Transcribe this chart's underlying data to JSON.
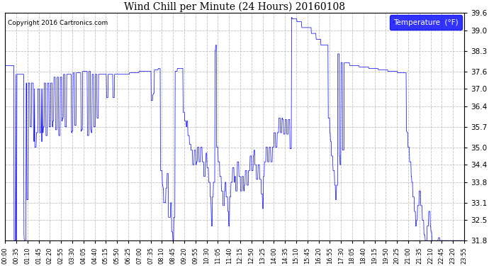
{
  "title": "Wind Chill per Minute (24 Hours) 20160108",
  "copyright": "Copyright 2016 Cartronics.com",
  "legend_label": "Temperature  (°F)",
  "line_color": "blue",
  "background_color": "#ffffff",
  "grid_color": "#bbbbbb",
  "ylim": [
    31.8,
    39.6
  ],
  "yticks": [
    31.8,
    32.5,
    33.1,
    33.8,
    34.4,
    35.0,
    35.7,
    36.4,
    37.0,
    37.6,
    38.3,
    39.0,
    39.6
  ],
  "xtick_labels": [
    "00:00",
    "00:35",
    "01:10",
    "01:45",
    "02:20",
    "02:55",
    "03:30",
    "04:05",
    "04:40",
    "05:15",
    "05:50",
    "06:25",
    "07:00",
    "07:35",
    "08:10",
    "08:45",
    "09:20",
    "09:55",
    "10:30",
    "11:05",
    "11:40",
    "12:15",
    "12:50",
    "13:25",
    "14:00",
    "14:35",
    "15:10",
    "15:45",
    "16:20",
    "16:55",
    "17:30",
    "18:05",
    "18:40",
    "19:15",
    "19:50",
    "20:25",
    "21:00",
    "21:35",
    "22:10",
    "22:45",
    "23:20",
    "23:55"
  ]
}
